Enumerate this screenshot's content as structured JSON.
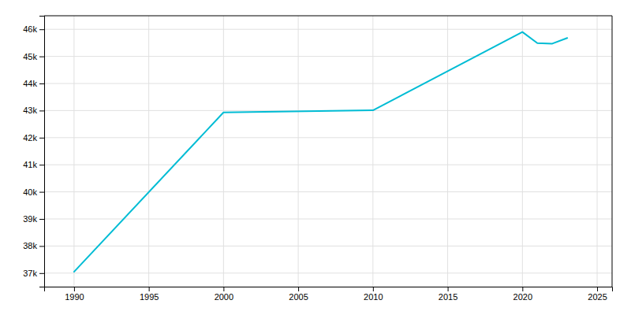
{
  "chart_data": {
    "type": "line",
    "x": [
      1990,
      2000,
      2010,
      2020,
      2021,
      2022,
      2023
    ],
    "values": [
      37050,
      42930,
      43010,
      45900,
      45490,
      45470,
      45680
    ],
    "color": "#00BCD4",
    "xlim": [
      1988,
      2026
    ],
    "ylim": [
      36500,
      46500
    ],
    "xticks": [
      1990,
      1995,
      2000,
      2005,
      2010,
      2015,
      2020,
      2025
    ],
    "yticks": [
      {
        "value": 37000,
        "label": "37k"
      },
      {
        "value": 38000,
        "label": "38k"
      },
      {
        "value": 39000,
        "label": "39k"
      },
      {
        "value": 40000,
        "label": "40k"
      },
      {
        "value": 41000,
        "label": "41k"
      },
      {
        "value": 42000,
        "label": "42k"
      },
      {
        "value": 43000,
        "label": "43k"
      },
      {
        "value": 44000,
        "label": "44k"
      },
      {
        "value": 45000,
        "label": "45k"
      },
      {
        "value": 46000,
        "label": "46k"
      }
    ],
    "grid": true
  }
}
